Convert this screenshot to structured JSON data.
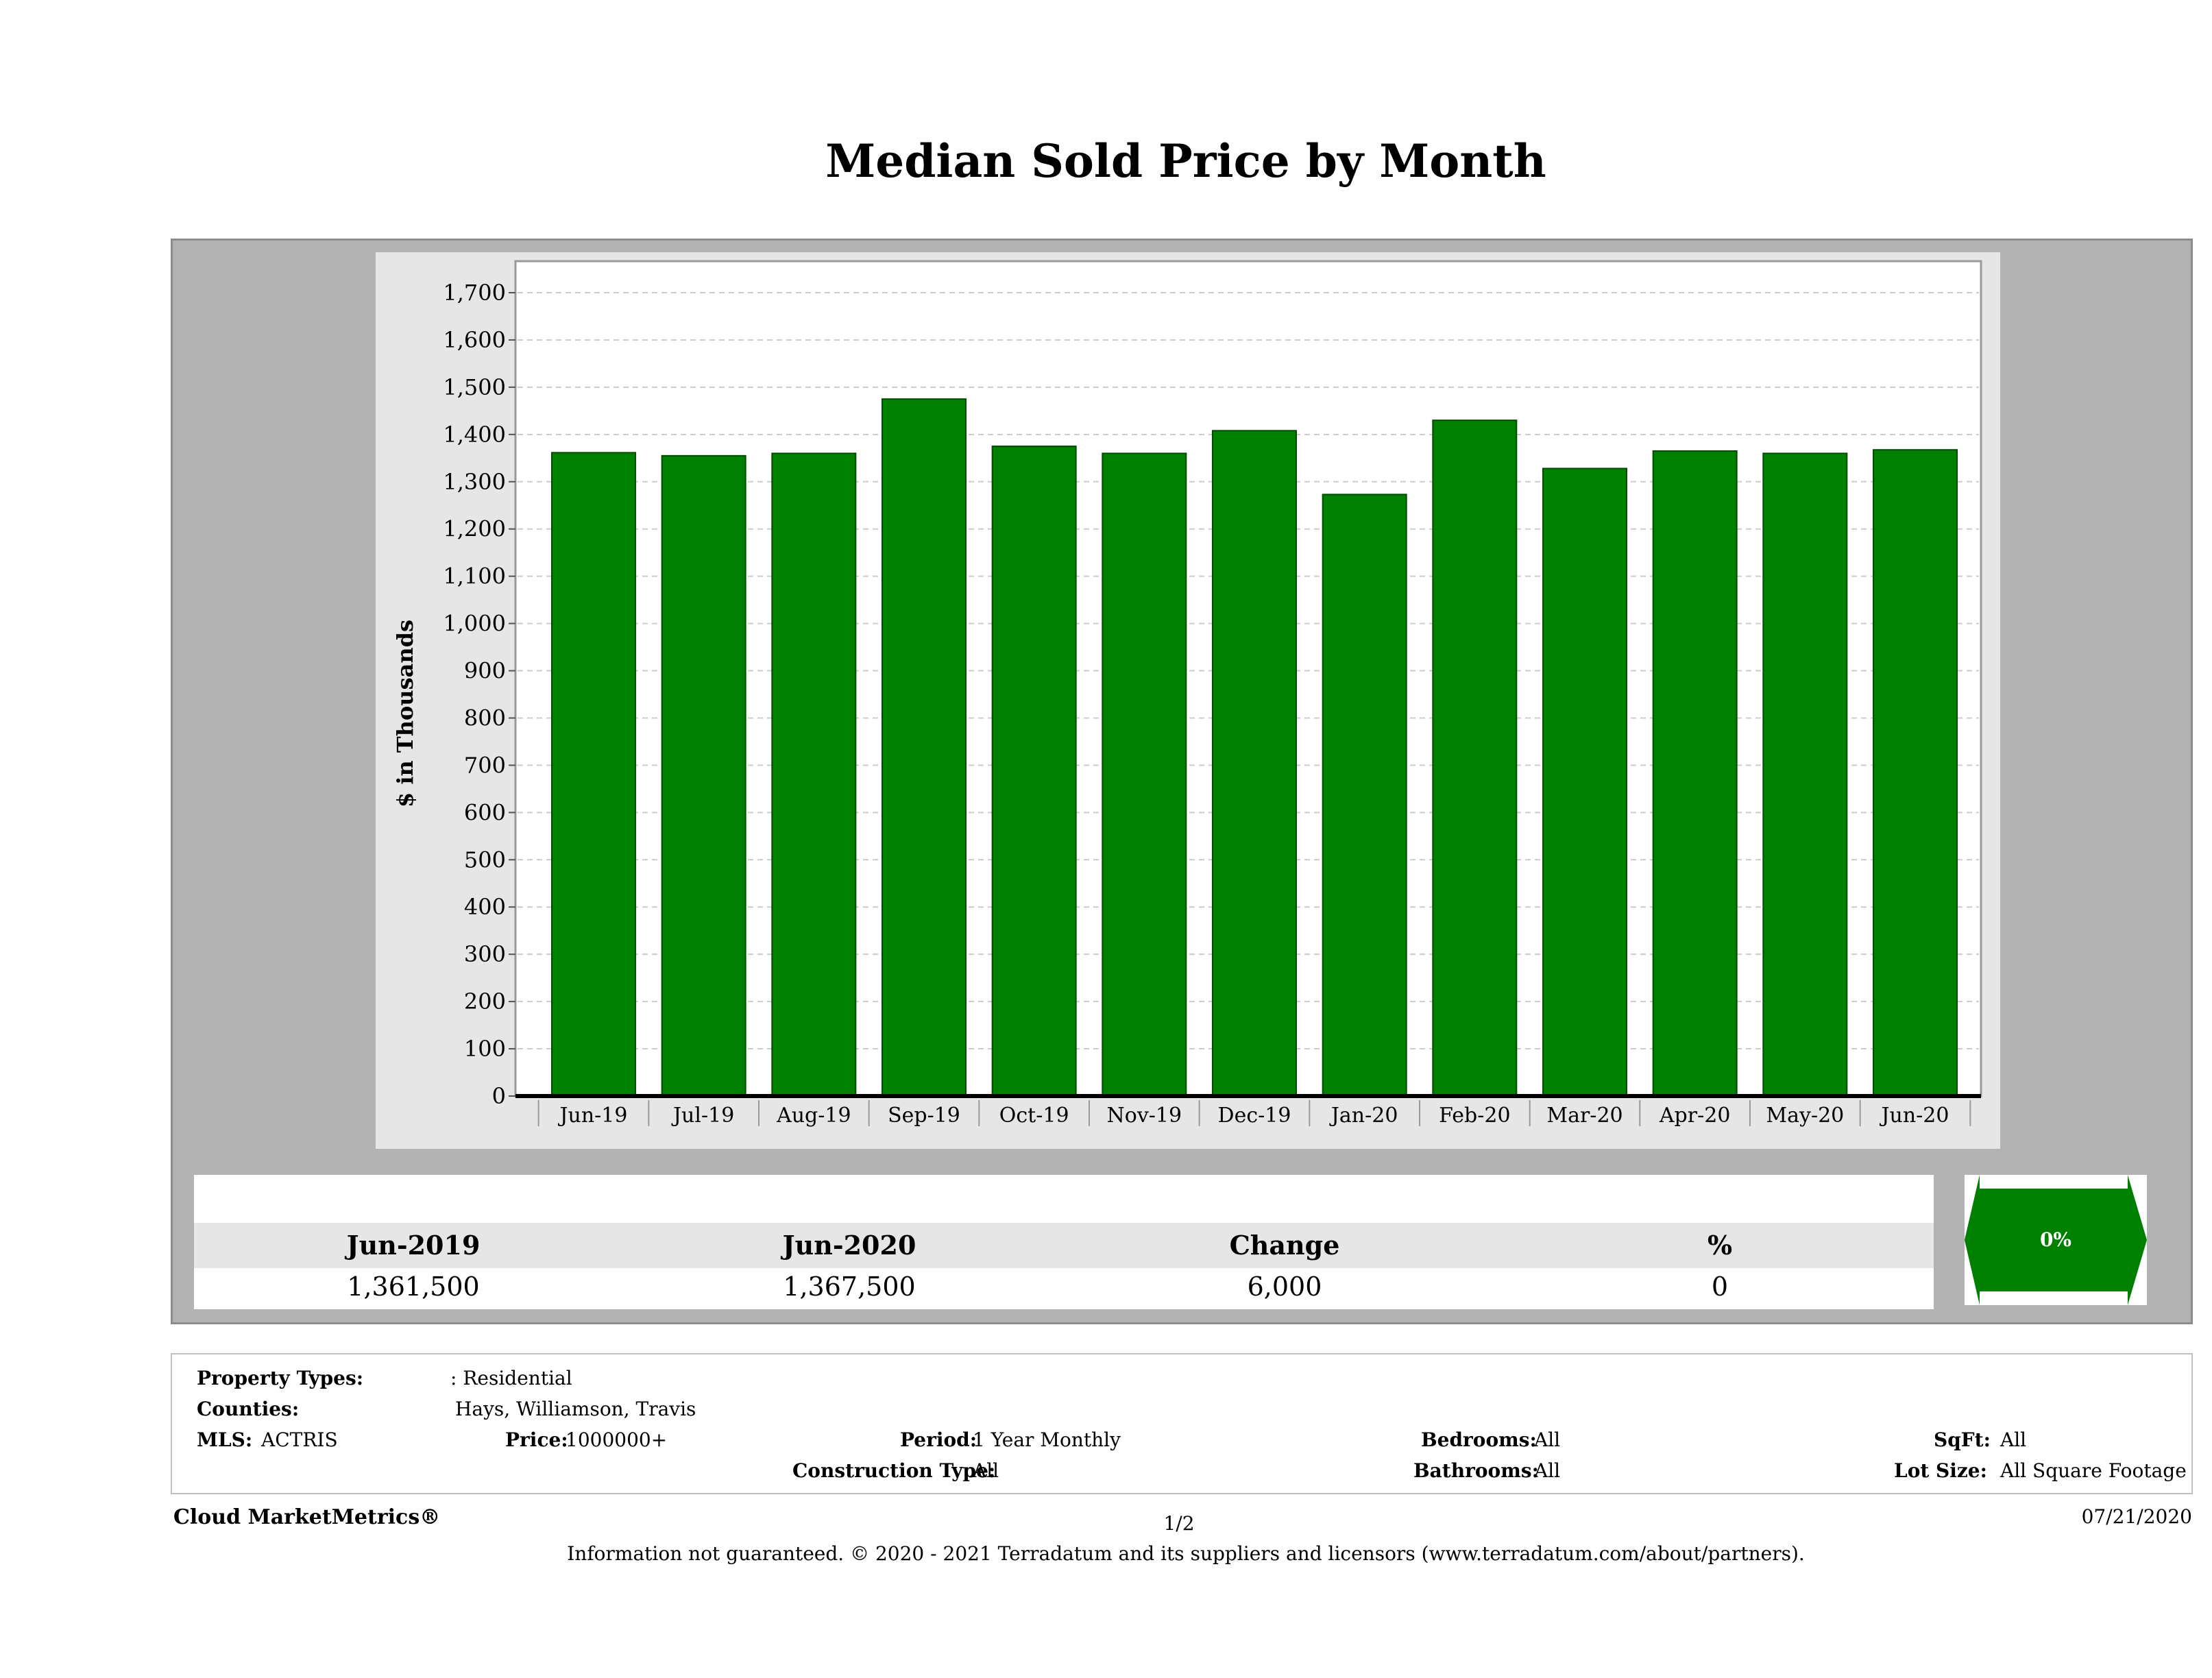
{
  "chart_data": {
    "type": "bar",
    "title": "Median Sold Price by Month",
    "ylabel": "$ in Thousands",
    "xlabel": "",
    "ylim": [
      0,
      1700
    ],
    "yticks": [
      0,
      100,
      200,
      300,
      400,
      500,
      600,
      700,
      800,
      900,
      1000,
      1100,
      1200,
      1300,
      1400,
      1500,
      1600,
      1700
    ],
    "ytick_labels": [
      "0",
      "100",
      "200",
      "300",
      "400",
      "500",
      "600",
      "700",
      "800",
      "900",
      "1,000",
      "1,100",
      "1,200",
      "1,300",
      "1,400",
      "1,500",
      "1,600",
      "1,700"
    ],
    "categories": [
      "Jun-19",
      "Jul-19",
      "Aug-19",
      "Sep-19",
      "Oct-19",
      "Nov-19",
      "Dec-19",
      "Jan-20",
      "Feb-20",
      "Mar-20",
      "Apr-20",
      "May-20",
      "Jun-20"
    ],
    "values": [
      1361.5,
      1355,
      1360,
      1475,
      1375,
      1360,
      1408,
      1273,
      1430,
      1328,
      1365,
      1360,
      1367.5
    ],
    "bar_color": "#008000",
    "grid": true
  },
  "summary": {
    "headers": [
      "Jun-2019",
      "Jun-2020",
      "Change",
      "%"
    ],
    "values": [
      "1,361,500",
      "1,367,500",
      "6,000",
      "0"
    ],
    "badge": "0%",
    "badge_color": "#008000"
  },
  "info": {
    "property_types_label": "Property Types:",
    "property_types_value": ": Residential",
    "counties_label": "Counties:",
    "counties_value": "Hays, Williamson, Travis",
    "mls_label": "MLS:",
    "mls_value": "ACTRIS",
    "price_label": "Price:",
    "price_value": "1000000+",
    "period_label": "Period:",
    "period_value": "1 Year Monthly",
    "construction_label": "Construction Type:",
    "construction_value": "All",
    "bedrooms_label": "Bedrooms:",
    "bedrooms_value": "All",
    "bathrooms_label": "Bathrooms:",
    "bathrooms_value": "All",
    "sqft_label": "SqFt:",
    "sqft_value": "All",
    "lotsize_label": "Lot Size:",
    "lotsize_value": "All Square Footage"
  },
  "footer": {
    "brand": "Cloud MarketMetrics®",
    "page": "1/2",
    "date": "07/21/2020",
    "disclaimer": "Information not guaranteed. © 2020 - 2021 Terradatum and its suppliers and licensors (www.terradatum.com/about/partners)."
  }
}
